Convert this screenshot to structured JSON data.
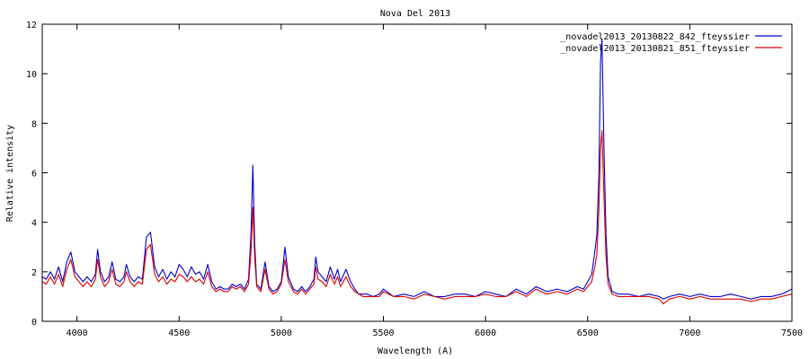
{
  "chart_data": {
    "type": "line",
    "title": "Nova Del 2013",
    "xlabel": "Wavelength (A)",
    "ylabel": "Relative intensity",
    "xlim": [
      3830,
      7500
    ],
    "ylim": [
      0,
      12
    ],
    "xticks": [
      4000,
      4500,
      5000,
      5500,
      6000,
      6500,
      7000,
      7500
    ],
    "yticks": [
      0,
      2,
      4,
      6,
      8,
      10,
      12
    ],
    "grid": false,
    "legend_position": "top-right",
    "series": [
      {
        "name": "_novadel2013_20130822_842_fteyssier",
        "color": "#0000cc",
        "x": [
          3830,
          3850,
          3870,
          3890,
          3910,
          3930,
          3950,
          3970,
          3990,
          4010,
          4030,
          4050,
          4070,
          4090,
          4101,
          4115,
          4135,
          4155,
          4172,
          4190,
          4210,
          4230,
          4242,
          4260,
          4280,
          4300,
          4320,
          4340,
          4360,
          4380,
          4400,
          4420,
          4440,
          4460,
          4480,
          4500,
          4520,
          4540,
          4560,
          4580,
          4600,
          4620,
          4640,
          4660,
          4680,
          4700,
          4720,
          4740,
          4760,
          4780,
          4800,
          4820,
          4840,
          4852,
          4861,
          4870,
          4880,
          4900,
          4921,
          4940,
          4960,
          4980,
          5000,
          5018,
          5035,
          5060,
          5080,
          5100,
          5120,
          5140,
          5160,
          5169,
          5180,
          5200,
          5220,
          5240,
          5260,
          5276,
          5290,
          5317,
          5340,
          5360,
          5380,
          5400,
          5420,
          5450,
          5480,
          5500,
          5550,
          5600,
          5650,
          5700,
          5750,
          5800,
          5850,
          5900,
          5950,
          6000,
          6050,
          6100,
          6150,
          6200,
          6247,
          6300,
          6350,
          6400,
          6450,
          6480,
          6500,
          6520,
          6535,
          6545,
          6555,
          6563,
          6570,
          6580,
          6590,
          6600,
          6620,
          6650,
          6700,
          6750,
          6800,
          6850,
          6870,
          6900,
          6950,
          7000,
          7050,
          7100,
          7150,
          7200,
          7250,
          7300,
          7350,
          7400,
          7450,
          7500
        ],
        "y": [
          1.8,
          1.7,
          2.0,
          1.7,
          2.2,
          1.6,
          2.4,
          2.8,
          2.0,
          1.8,
          1.6,
          1.8,
          1.6,
          1.9,
          2.9,
          2.0,
          1.6,
          1.8,
          2.4,
          1.7,
          1.6,
          1.8,
          2.3,
          1.8,
          1.6,
          1.8,
          1.7,
          3.4,
          3.6,
          2.2,
          1.8,
          2.1,
          1.7,
          2.0,
          1.8,
          2.3,
          2.1,
          1.8,
          2.2,
          1.9,
          2.0,
          1.7,
          2.3,
          1.6,
          1.3,
          1.4,
          1.3,
          1.3,
          1.5,
          1.4,
          1.5,
          1.3,
          1.7,
          3.5,
          6.3,
          3.2,
          1.5,
          1.3,
          2.4,
          1.4,
          1.2,
          1.3,
          1.6,
          3.0,
          1.8,
          1.3,
          1.2,
          1.4,
          1.2,
          1.4,
          1.7,
          2.6,
          2.0,
          1.8,
          1.6,
          2.2,
          1.7,
          2.1,
          1.6,
          2.1,
          1.6,
          1.3,
          1.1,
          1.1,
          1.1,
          1.0,
          1.1,
          1.3,
          1.0,
          1.1,
          1.0,
          1.2,
          1.0,
          1.0,
          1.1,
          1.1,
          1.0,
          1.2,
          1.1,
          1.0,
          1.3,
          1.1,
          1.4,
          1.2,
          1.3,
          1.2,
          1.4,
          1.3,
          1.6,
          1.9,
          2.8,
          3.5,
          6.0,
          10.5,
          11.4,
          7.0,
          3.5,
          1.8,
          1.2,
          1.1,
          1.1,
          1.0,
          1.1,
          1.0,
          0.9,
          1.0,
          1.1,
          1.0,
          1.1,
          1.0,
          1.0,
          1.1,
          1.0,
          0.9,
          1.0,
          1.0,
          1.1,
          1.3
        ]
      },
      {
        "name": "_novadel2013_20130821_851_fteyssier",
        "color": "#dd0000",
        "x": [
          3830,
          3850,
          3870,
          3890,
          3910,
          3930,
          3950,
          3970,
          3990,
          4010,
          4030,
          4050,
          4070,
          4090,
          4101,
          4115,
          4135,
          4155,
          4172,
          4190,
          4210,
          4230,
          4242,
          4260,
          4280,
          4300,
          4320,
          4340,
          4360,
          4380,
          4400,
          4420,
          4440,
          4460,
          4480,
          4500,
          4520,
          4540,
          4560,
          4580,
          4600,
          4620,
          4640,
          4660,
          4680,
          4700,
          4720,
          4740,
          4760,
          4780,
          4800,
          4820,
          4840,
          4852,
          4861,
          4870,
          4880,
          4900,
          4921,
          4940,
          4960,
          4980,
          5000,
          5018,
          5035,
          5060,
          5080,
          5100,
          5120,
          5140,
          5160,
          5169,
          5180,
          5200,
          5220,
          5240,
          5260,
          5276,
          5290,
          5317,
          5340,
          5360,
          5380,
          5400,
          5420,
          5450,
          5480,
          5500,
          5550,
          5600,
          5650,
          5700,
          5750,
          5800,
          5850,
          5900,
          5950,
          6000,
          6050,
          6100,
          6150,
          6200,
          6247,
          6300,
          6350,
          6400,
          6450,
          6480,
          6500,
          6520,
          6535,
          6545,
          6555,
          6563,
          6570,
          6580,
          6590,
          6600,
          6620,
          6650,
          6700,
          6750,
          6800,
          6850,
          6870,
          6900,
          6950,
          7000,
          7050,
          7100,
          7150,
          7200,
          7250,
          7300,
          7350,
          7400,
          7450,
          7500
        ],
        "y": [
          1.6,
          1.5,
          1.8,
          1.5,
          1.9,
          1.4,
          2.1,
          2.5,
          1.8,
          1.6,
          1.4,
          1.6,
          1.4,
          1.7,
          2.5,
          1.8,
          1.4,
          1.6,
          2.1,
          1.5,
          1.4,
          1.6,
          2.0,
          1.6,
          1.4,
          1.6,
          1.5,
          2.9,
          3.1,
          1.9,
          1.6,
          1.8,
          1.5,
          1.7,
          1.6,
          1.9,
          1.8,
          1.6,
          1.8,
          1.6,
          1.7,
          1.5,
          2.0,
          1.4,
          1.2,
          1.3,
          1.2,
          1.2,
          1.4,
          1.3,
          1.4,
          1.2,
          1.5,
          2.8,
          4.6,
          2.6,
          1.4,
          1.2,
          2.1,
          1.3,
          1.1,
          1.2,
          1.5,
          2.5,
          1.6,
          1.2,
          1.1,
          1.3,
          1.1,
          1.3,
          1.5,
          2.2,
          1.7,
          1.6,
          1.4,
          1.9,
          1.5,
          1.8,
          1.4,
          1.8,
          1.4,
          1.2,
          1.1,
          1.0,
          1.0,
          1.0,
          1.0,
          1.2,
          1.0,
          1.0,
          0.9,
          1.1,
          1.0,
          0.9,
          1.0,
          1.0,
          1.0,
          1.1,
          1.0,
          1.0,
          1.2,
          1.0,
          1.3,
          1.1,
          1.2,
          1.1,
          1.3,
          1.2,
          1.4,
          1.6,
          2.2,
          2.7,
          4.5,
          7.0,
          7.7,
          5.0,
          2.6,
          1.5,
          1.1,
          1.0,
          1.0,
          1.0,
          1.0,
          0.9,
          0.7,
          0.9,
          1.0,
          0.9,
          1.0,
          0.9,
          0.9,
          0.9,
          0.9,
          0.8,
          0.9,
          0.9,
          1.0,
          1.1
        ]
      }
    ]
  }
}
